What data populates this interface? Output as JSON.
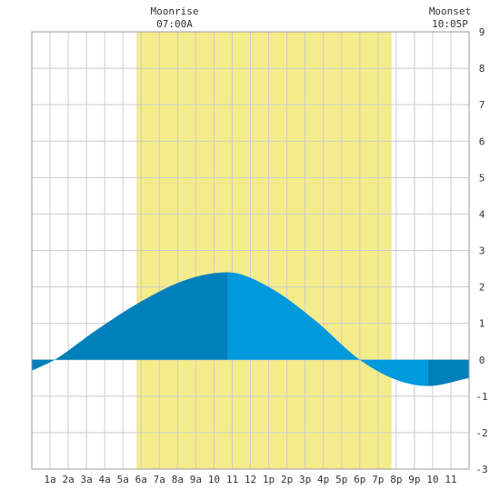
{
  "header": {
    "moonrise_label": "Moonrise",
    "moonrise_time": "07:00A",
    "moonset_label": "Moonset",
    "moonset_time": "10:05P"
  },
  "chart_data": {
    "type": "area",
    "title": "",
    "xlabel": "",
    "ylabel": "",
    "x_tick_labels": [
      "1a",
      "2a",
      "3a",
      "4a",
      "5a",
      "6a",
      "7a",
      "8a",
      "9a",
      "10",
      "11",
      "12",
      "1p",
      "2p",
      "3p",
      "4p",
      "5p",
      "6p",
      "7p",
      "8p",
      "9p",
      "10",
      "11"
    ],
    "x_range_hours": [
      0,
      24
    ],
    "y_ticks": [
      9,
      8,
      7,
      6,
      5,
      4,
      3,
      2,
      1,
      0,
      -1,
      -2,
      -3
    ],
    "ylim": [
      -3,
      9
    ],
    "grid": true,
    "daylight_hours": [
      5.75,
      19.75
    ],
    "series": [
      {
        "x": [
          0,
          1.25,
          3.5,
          6.0,
          8.5,
          10.75,
          13.0,
          15.5,
          18.0,
          20.0,
          21.75,
          24.0
        ],
        "y": [
          -0.3,
          0.0,
          0.8,
          1.6,
          2.2,
          2.4,
          2.0,
          1.1,
          0.0,
          -0.55,
          -0.72,
          -0.5
        ]
      }
    ],
    "high_tide_hour": 10.75,
    "low_tide_hour": 21.75,
    "colors": {
      "daylight": "#f4ec8a",
      "rising": "#0080bb",
      "falling": "#0099dc",
      "grid": "#cccccc",
      "background": "#ffffff"
    }
  }
}
